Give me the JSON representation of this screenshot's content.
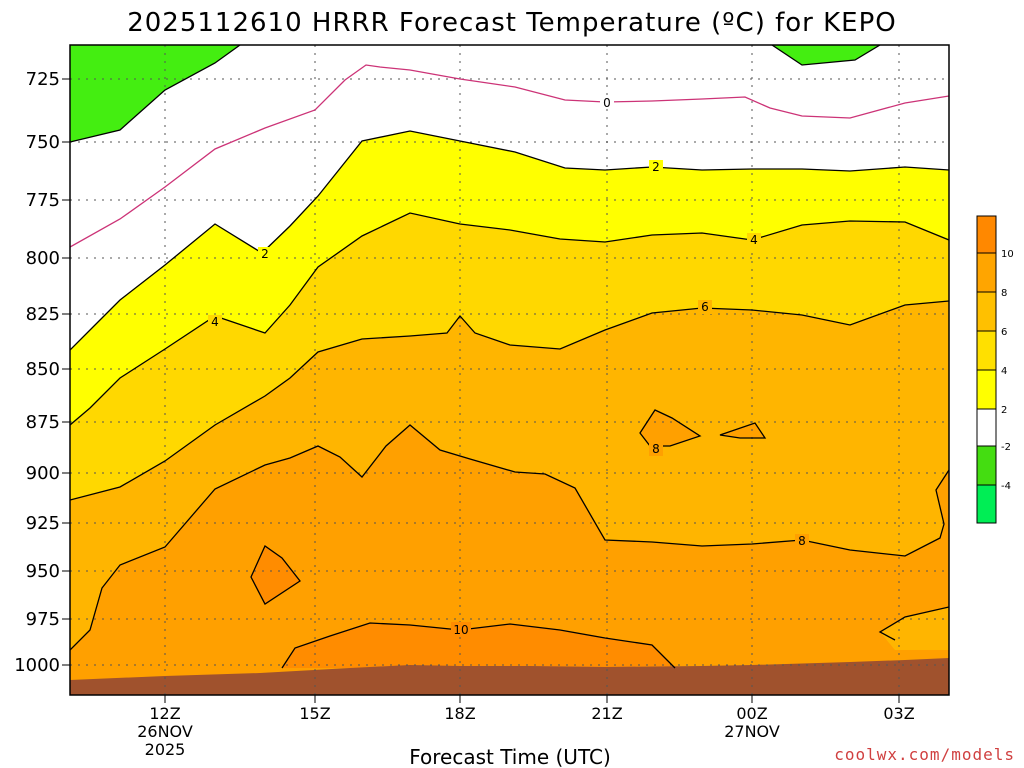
{
  "chart_data": {
    "type": "contour",
    "title": "2025112610 HRRR Forecast Temperature (ºC) for KEPO",
    "xlabel": "Forecast Time (UTC)",
    "ylabel": "",
    "credit": "coolwx.com/models",
    "y_ticks": [
      "725",
      "750",
      "775",
      "800",
      "825",
      "850",
      "875",
      "900",
      "925",
      "950",
      "975",
      "1000"
    ],
    "x_ticks": [
      {
        "label": "12Z",
        "sub1": "26NOV",
        "sub2": "2025"
      },
      {
        "label": "15Z",
        "sub1": "",
        "sub2": ""
      },
      {
        "label": "18Z",
        "sub1": "",
        "sub2": ""
      },
      {
        "label": "21Z",
        "sub1": "",
        "sub2": ""
      },
      {
        "label": "00Z",
        "sub1": "27NOV",
        "sub2": ""
      },
      {
        "label": "03Z",
        "sub1": "",
        "sub2": ""
      }
    ],
    "contour_labels": [
      "0",
      "2",
      "2",
      "4",
      "4",
      "6",
      "8",
      "8",
      "10"
    ],
    "colorbar": {
      "levels": [
        "10",
        "8",
        "6",
        "4",
        "2",
        "-2",
        "-4"
      ],
      "colors": [
        "#ff8800",
        "#ffa500",
        "#ffc000",
        "#ffe000",
        "#ffff00",
        "#ffffff",
        "#44dd11",
        "#00ee55"
      ]
    },
    "fill_colors": {
      "below_minus2": "#44ee11",
      "minus2_to_2": "#ffffff",
      "2_to_4": "#ffff00",
      "4_to_6": "#ffd800",
      "6_to_8": "#ffb500",
      "8_to_10": "#ffa000",
      "above_10": "#ff8c00",
      "ground": "#a0522d",
      "contour_zero": "#cc3377",
      "contour": "#000000"
    },
    "grid": true
  }
}
